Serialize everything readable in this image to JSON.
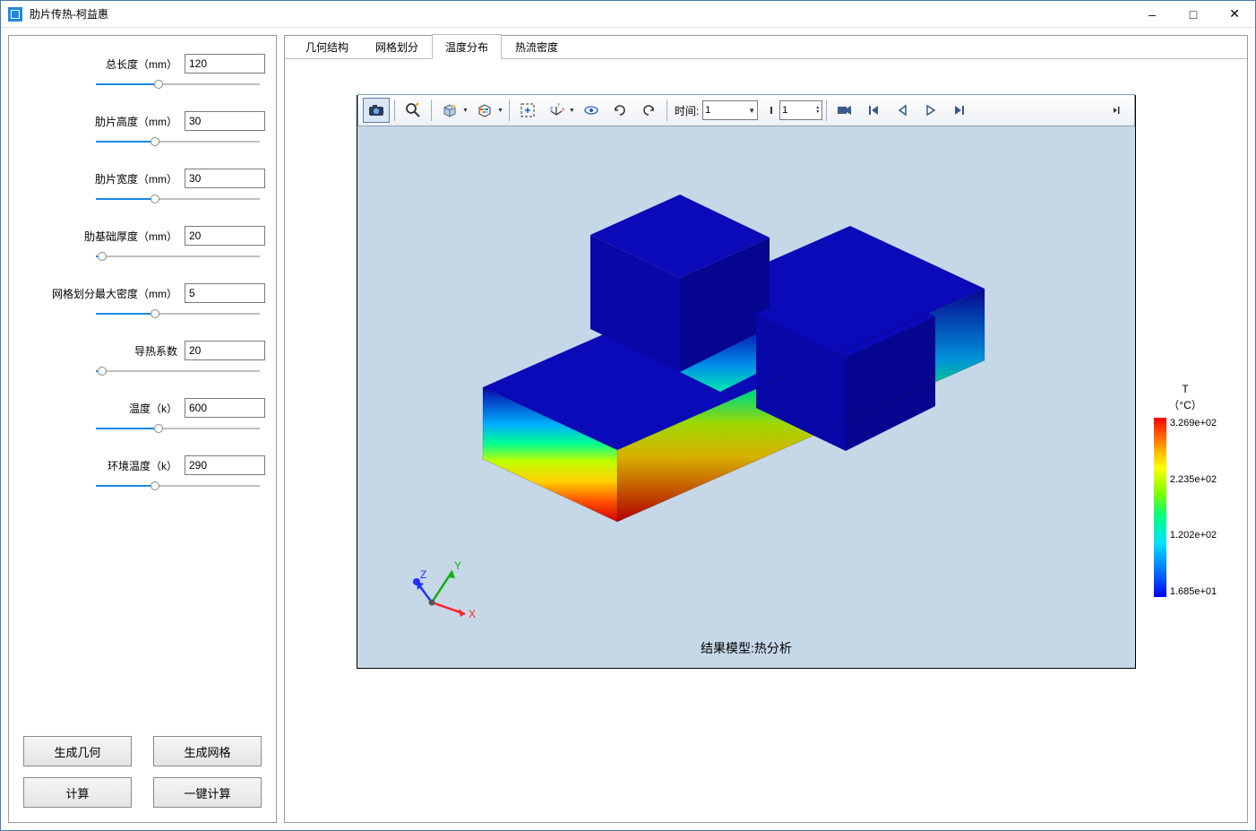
{
  "window": {
    "title": "肋片传热-柯益惠"
  },
  "params": [
    {
      "label": "总长度（mm）",
      "value": "120",
      "slider_pct": 38
    },
    {
      "label": "肋片高度（mm）",
      "value": "30",
      "slider_pct": 36
    },
    {
      "label": "肋片宽度（mm）",
      "value": "30",
      "slider_pct": 36
    },
    {
      "label": "肋基础厚度（mm）",
      "value": "20",
      "slider_pct": 4
    },
    {
      "label": "网格划分最大密度（mm）",
      "value": "5",
      "slider_pct": 36
    },
    {
      "label": "导热系数",
      "value": "20",
      "slider_pct": 4
    },
    {
      "label": "温度（k）",
      "value": "600",
      "slider_pct": 38
    },
    {
      "label": "环境温度（k）",
      "value": "290",
      "slider_pct": 36
    }
  ],
  "buttons": {
    "gen_geom": "生成几何",
    "gen_mesh": "生成网格",
    "compute": "计算",
    "one_click": "一键计算"
  },
  "tabs": [
    {
      "label": "几何结构",
      "active": false
    },
    {
      "label": "网格划分",
      "active": false
    },
    {
      "label": "温度分布",
      "active": true
    },
    {
      "label": "热流密度",
      "active": false
    }
  ],
  "toolbar": {
    "time_label": "时间:",
    "time_value": "1",
    "frame_value": "1"
  },
  "triad": {
    "x": "X",
    "y": "Y",
    "z": "Z"
  },
  "result_caption": "结果模型:热分析",
  "legend": {
    "title": "T",
    "unit": "（°C）",
    "max": "3.269e+02",
    "q3": "2.235e+02",
    "q2": "1.202e+02",
    "min": "1.685e+01",
    "colors": {
      "top": "#ff0000",
      "bottom": "#0000ff"
    }
  },
  "viewport": {
    "background": "#c6d7e8",
    "fin_top_color": "#0707aa",
    "fin_side_color": "#050580"
  }
}
